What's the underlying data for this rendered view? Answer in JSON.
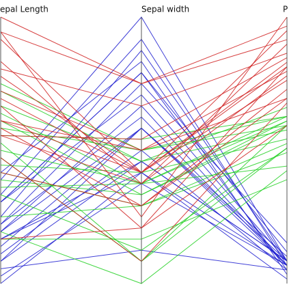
{
  "chart_data": {
    "type": "parallel",
    "dimensions": [
      "epal Length",
      "Sepal width",
      "P"
    ],
    "lims": [
      [
        4.3,
        7.9
      ],
      [
        2.0,
        4.4
      ],
      [
        1.0,
        6.9
      ]
    ],
    "series": [
      {
        "color": "#1f1fd0",
        "values": [
          [
            5.1,
            3.5,
            1.4
          ],
          [
            4.9,
            3.0,
            1.4
          ],
          [
            4.7,
            3.2,
            1.3
          ],
          [
            4.6,
            3.1,
            1.5
          ],
          [
            5.0,
            3.6,
            1.4
          ],
          [
            5.4,
            3.9,
            1.7
          ],
          [
            4.6,
            3.4,
            1.4
          ],
          [
            5.0,
            3.4,
            1.5
          ],
          [
            4.4,
            2.9,
            1.4
          ],
          [
            4.9,
            3.1,
            1.5
          ],
          [
            5.4,
            3.7,
            1.5
          ],
          [
            4.8,
            3.4,
            1.6
          ],
          [
            4.3,
            3.0,
            1.1
          ],
          [
            5.8,
            4.0,
            1.2
          ],
          [
            5.7,
            4.4,
            1.5
          ],
          [
            5.4,
            3.9,
            1.3
          ],
          [
            5.1,
            3.8,
            1.9
          ],
          [
            4.5,
            2.3,
            1.3
          ],
          [
            5.2,
            4.1,
            1.5
          ],
          [
            5.5,
            4.2,
            1.4
          ]
        ]
      },
      {
        "color": "#22d022",
        "values": [
          [
            7.0,
            3.2,
            4.7
          ],
          [
            6.4,
            3.2,
            4.5
          ],
          [
            6.9,
            3.1,
            4.9
          ],
          [
            5.5,
            2.3,
            4.0
          ],
          [
            6.5,
            2.8,
            4.6
          ],
          [
            5.7,
            2.8,
            4.5
          ],
          [
            6.3,
            3.3,
            4.7
          ],
          [
            4.9,
            2.4,
            3.3
          ],
          [
            6.6,
            2.9,
            4.6
          ],
          [
            5.2,
            2.7,
            3.9
          ],
          [
            5.0,
            2.0,
            3.5
          ],
          [
            5.9,
            3.0,
            4.2
          ],
          [
            6.0,
            2.2,
            4.0
          ],
          [
            6.1,
            2.9,
            4.7
          ],
          [
            5.6,
            2.9,
            3.6
          ],
          [
            6.7,
            3.1,
            4.4
          ],
          [
            5.8,
            2.7,
            4.1
          ],
          [
            6.2,
            2.2,
            4.5
          ]
        ]
      },
      {
        "color": "#d02020",
        "values": [
          [
            6.3,
            3.3,
            6.0
          ],
          [
            5.8,
            2.7,
            5.1
          ],
          [
            7.1,
            3.0,
            5.9
          ],
          [
            6.3,
            2.9,
            5.6
          ],
          [
            6.5,
            3.0,
            5.8
          ],
          [
            7.6,
            3.0,
            6.6
          ],
          [
            4.9,
            2.5,
            4.5
          ],
          [
            7.3,
            2.9,
            6.3
          ],
          [
            6.7,
            2.5,
            5.8
          ],
          [
            7.2,
            3.6,
            6.1
          ],
          [
            6.5,
            3.2,
            5.1
          ],
          [
            6.4,
            2.7,
            5.3
          ],
          [
            6.8,
            3.0,
            5.5
          ],
          [
            7.7,
            3.8,
            6.7
          ],
          [
            7.7,
            2.6,
            6.9
          ],
          [
            6.0,
            2.2,
            5.0
          ],
          [
            6.9,
            3.2,
            5.7
          ],
          [
            7.9,
            3.8,
            6.4
          ]
        ]
      }
    ]
  }
}
